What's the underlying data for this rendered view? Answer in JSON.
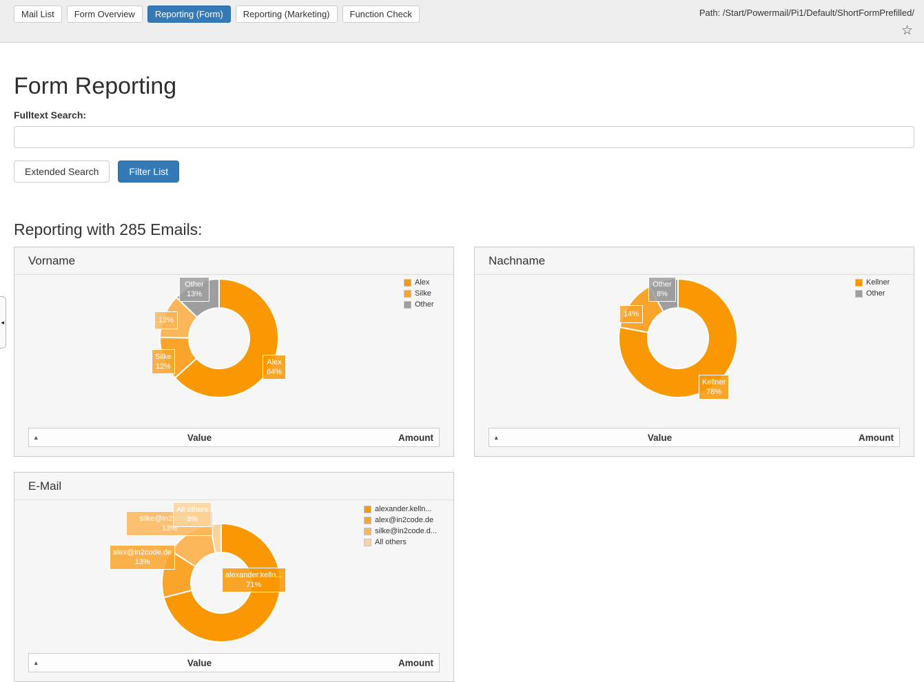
{
  "toolbar": {
    "tabs": [
      {
        "label": "Mail List",
        "active": false
      },
      {
        "label": "Form Overview",
        "active": false
      },
      {
        "label": "Reporting (Form)",
        "active": true
      },
      {
        "label": "Reporting (Marketing)",
        "active": false
      },
      {
        "label": "Function Check",
        "active": false
      }
    ],
    "path": "Path: /Start/Powermail/Pi1/Default/ShortFormPrefilled/",
    "star_icon": "☆",
    "collapse_icon": "◂"
  },
  "main": {
    "title": "Form Reporting",
    "search_label": "Fulltext Search:",
    "search_value": "",
    "extended_search_button": "Extended Search",
    "filter_list_button": "Filter List",
    "section_heading": "Reporting with 285 Emails:"
  },
  "table_header": {
    "sort_icon": "▴",
    "value": "Value",
    "amount": "Amount"
  },
  "colors": {
    "accent_blue": "#337ab7",
    "orange_1": "#f99803",
    "orange_2": "#faa42c",
    "orange_3": "#fbb659",
    "orange_4": "#fcd49b",
    "gray_slice": "#9e9e9e"
  },
  "chart_data": [
    {
      "type": "pie",
      "title": "Vorname",
      "donut": true,
      "slices": [
        {
          "label": "Alex",
          "pct": 64,
          "pct_label": "64%",
          "color": "#f99803"
        },
        {
          "label": "Silke",
          "pct": 12,
          "pct_label": "12%",
          "color": "#faa42c"
        },
        {
          "label": "",
          "pct": 12,
          "pct_label": "12%",
          "color": "#fbb659"
        },
        {
          "label": "Other",
          "pct": 13,
          "pct_label": "13%",
          "color": "#9e9e9e"
        }
      ],
      "legend": [
        {
          "label": "Alex",
          "color": "#f99803"
        },
        {
          "label": "Silke",
          "color": "#faa42c"
        },
        {
          "label": "Other",
          "color": "#9e9e9e"
        }
      ]
    },
    {
      "type": "pie",
      "title": "Nachname",
      "donut": true,
      "slices": [
        {
          "label": "Kellner",
          "pct": 78,
          "pct_label": "78%",
          "color": "#f99803"
        },
        {
          "label": "",
          "pct": 14,
          "pct_label": "14%",
          "color": "#faa42c"
        },
        {
          "label": "Other",
          "pct": 8,
          "pct_label": "8%",
          "color": "#9e9e9e"
        }
      ],
      "legend": [
        {
          "label": "Kellner",
          "color": "#f99803"
        },
        {
          "label": "Other",
          "color": "#9e9e9e"
        }
      ]
    },
    {
      "type": "pie",
      "title": "E-Mail",
      "donut": true,
      "slices": [
        {
          "label": "alexander.kelln...",
          "pct": 71,
          "pct_label": "71%",
          "color": "#f99803"
        },
        {
          "label": "alex@in2code.de",
          "pct": 13,
          "pct_label": "13%",
          "color": "#faa42c"
        },
        {
          "label": "silke@in2code.de",
          "pct": 13,
          "pct_label": "13%",
          "color": "#fbb659"
        },
        {
          "label": "All others",
          "pct": 3,
          "pct_label": "3%",
          "color": "#fcd49b"
        }
      ],
      "legend": [
        {
          "label": "alexander.kelln...",
          "color": "#f99803"
        },
        {
          "label": "alex@in2code.de",
          "color": "#faa42c"
        },
        {
          "label": "silke@in2code.d...",
          "color": "#fbb659"
        },
        {
          "label": "All others",
          "color": "#fcd49b"
        }
      ]
    }
  ]
}
